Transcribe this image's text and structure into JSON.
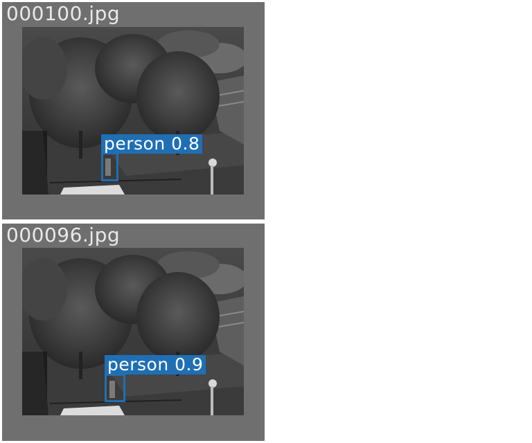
{
  "images": [
    {
      "filename": "000100.jpg",
      "detection": {
        "class": "person",
        "confidence": "0.8",
        "label": "person 0.8"
      }
    },
    {
      "filename": "000096.jpg",
      "detection": {
        "class": "person",
        "confidence": "0.9",
        "label": "person 0.9"
      }
    }
  ],
  "colors": {
    "tile_background": "#6f6f6f",
    "filename_text": "#e9e9e9",
    "detection_box": "#1f6fb4",
    "detection_label_text": "#ffffff"
  }
}
